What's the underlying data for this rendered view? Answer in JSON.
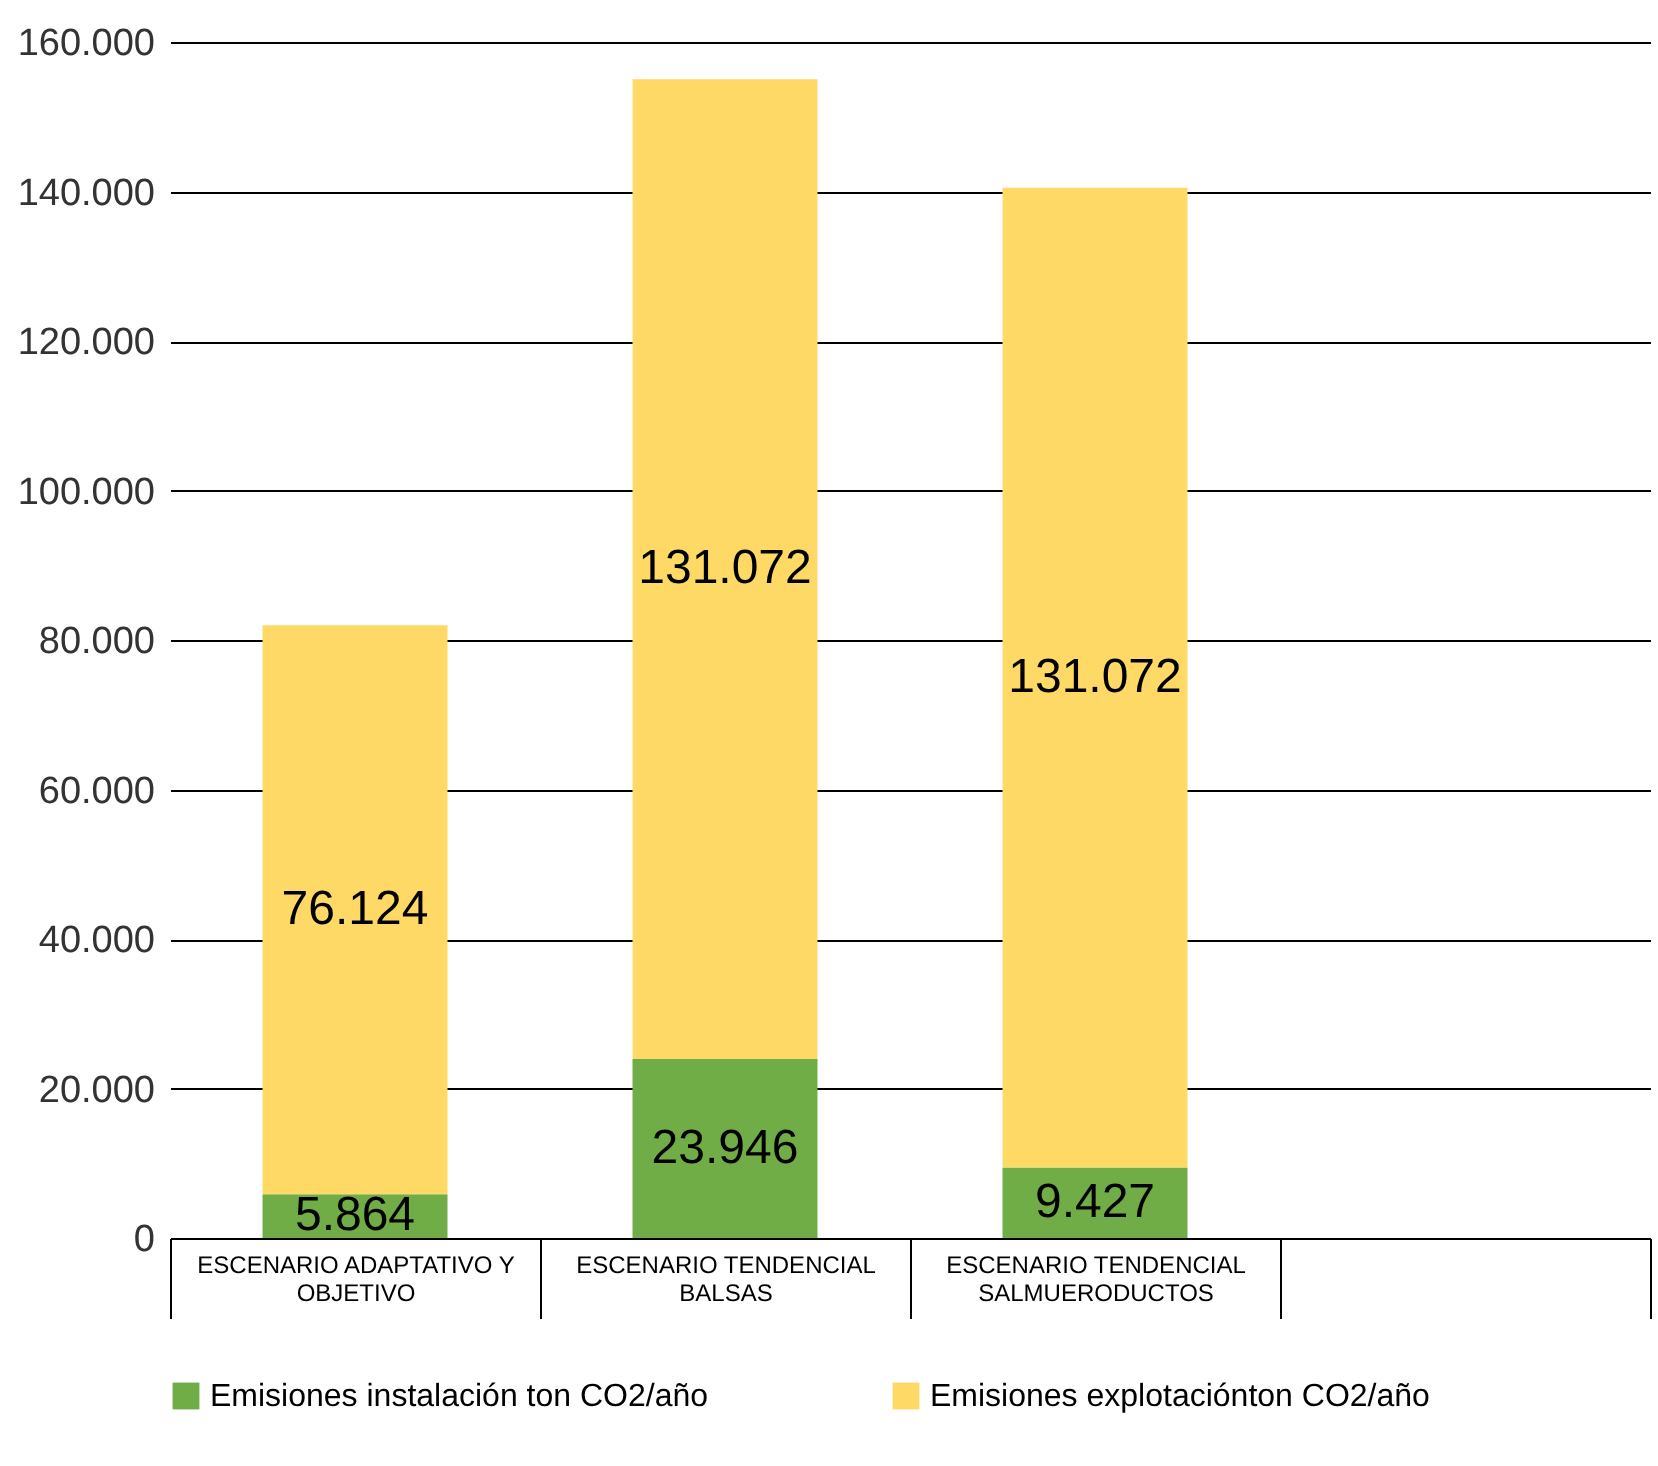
{
  "chart_data": {
    "type": "bar",
    "stacked": true,
    "categories": [
      "ESCENARIO ADAPTATIVO Y\nOBJETIVO",
      "ESCENARIO TENDENCIAL\nBALSAS",
      "ESCENARIO TENDENCIAL\nSALMUERODUCTOS",
      null
    ],
    "series": [
      {
        "name": "Emisiones instalación ton CO2/año",
        "color": "#70ad47",
        "values": [
          5864,
          23946,
          9427,
          null
        ],
        "value_labels": [
          "5.864",
          "23.946",
          "9.427",
          null
        ]
      },
      {
        "name": "Emisiones explotaciónton CO2/año",
        "color": "#ffd966",
        "values": [
          76124,
          131072,
          131072,
          null
        ],
        "value_labels": [
          "76.124",
          "131.072",
          "131.072",
          null
        ]
      }
    ],
    "ylim": [
      0,
      160000
    ],
    "yticks": [
      {
        "value": 0,
        "label": "0"
      },
      {
        "value": 20000,
        "label": "20.000"
      },
      {
        "value": 40000,
        "label": "40.000"
      },
      {
        "value": 60000,
        "label": "60.000"
      },
      {
        "value": 80000,
        "label": "80.000"
      },
      {
        "value": 100000,
        "label": "100.000"
      },
      {
        "value": 120000,
        "label": "120.000"
      },
      {
        "value": 140000,
        "label": "140.000"
      },
      {
        "value": 160000,
        "label": "160.000"
      }
    ],
    "grid": "y",
    "legend": "bottom"
  }
}
